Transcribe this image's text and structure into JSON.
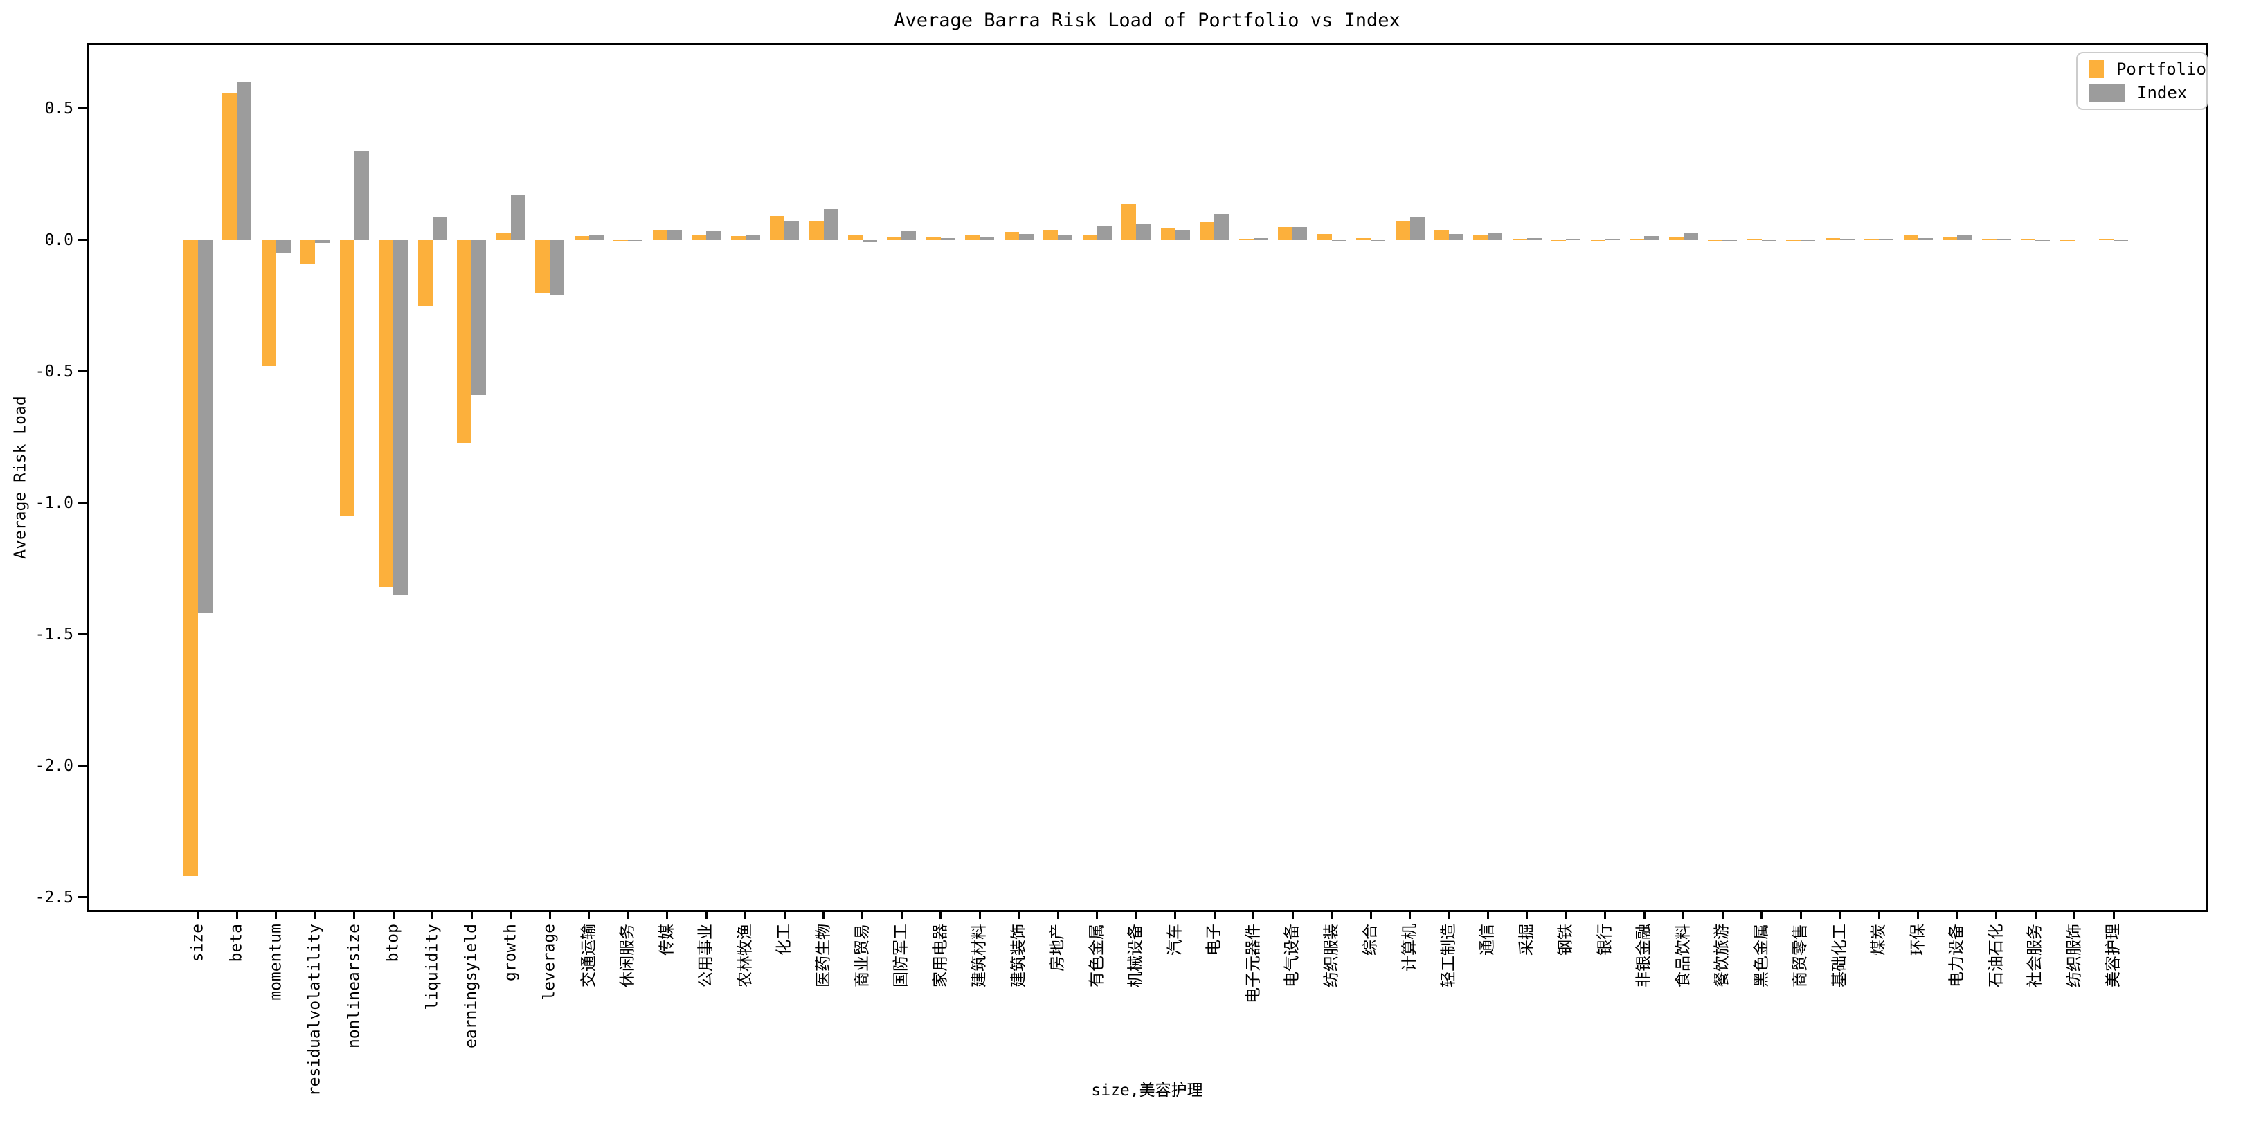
{
  "title": "Average Barra Risk Load of Portfolio vs Index",
  "xlabel": "size,美容护理",
  "ylabel": "Average Risk Load",
  "legend": {
    "portfolio_label": "Portfolio",
    "index_label": "Index"
  },
  "colors": {
    "portfolio": "#fcb03c",
    "index": "#9c9c9c",
    "spine": "#000000",
    "legend_border": "#cccccc"
  },
  "chart_data": {
    "type": "bar",
    "title": "Average Barra Risk Load of Portfolio vs Index",
    "xlabel": "size,美容护理",
    "ylabel": "Average Risk Load",
    "grid": false,
    "legend_position": "upper right",
    "ylim": [
      -2.54,
      0.75
    ],
    "yticks": [
      0.5,
      0.0,
      -0.5,
      -1.0,
      -1.5,
      -2.0,
      -2.5
    ],
    "categories": [
      "size",
      "beta",
      "momentum",
      "residualvolatility",
      "nonlinearsize",
      "btop",
      "liquidity",
      "earningsyield",
      "growth",
      "leverage",
      "交通运输",
      "休闲服务",
      "传媒",
      "公用事业",
      "农林牧渔",
      "化工",
      "医药生物",
      "商业贸易",
      "国防军工",
      "家用电器",
      "建筑材料",
      "建筑装饰",
      "房地产",
      "有色金属",
      "机械设备",
      "汽车",
      "电子",
      "电子元器件",
      "电气设备",
      "纺织服装",
      "综合",
      "计算机",
      "轻工制造",
      "通信",
      "采掘",
      "钢铁",
      "银行",
      "非银金融",
      "食品饮料",
      "餐饮旅游",
      "黑色金属",
      "商贸零售",
      "基础化工",
      "煤炭",
      "环保",
      "电力设备",
      "石油石化",
      "社会服务",
      "纺织服饰",
      "美容护理"
    ],
    "series": [
      {
        "name": "Portfolio",
        "color": "#fcb03c",
        "values": [
          -2.42,
          0.56,
          -0.48,
          -0.09,
          -1.05,
          -1.32,
          -0.25,
          -0.77,
          0.03,
          -0.2,
          0.016,
          -0.004,
          0.039,
          0.022,
          0.015,
          0.092,
          0.073,
          0.019,
          0.014,
          0.01,
          0.017,
          0.031,
          0.038,
          0.022,
          0.138,
          0.044,
          0.069,
          0.005,
          0.051,
          0.024,
          0.007,
          0.071,
          0.04,
          0.021,
          0.006,
          0.001,
          0.001,
          0.006,
          0.011,
          0.001,
          0.006,
          0.001,
          0.008,
          0.002,
          0.02,
          0.01,
          0.005,
          0.003,
          0.001,
          0.003
        ]
      },
      {
        "name": "Index",
        "color": "#9c9c9c",
        "values": [
          -1.42,
          0.6,
          -0.05,
          -0.01,
          0.34,
          -1.35,
          0.09,
          -0.59,
          0.17,
          -0.21,
          0.021,
          0.001,
          0.036,
          0.034,
          0.019,
          0.071,
          0.119,
          -0.007,
          0.035,
          0.009,
          0.011,
          0.024,
          0.021,
          0.052,
          0.061,
          0.037,
          0.099,
          0.007,
          0.05,
          -0.005,
          -0.001,
          0.089,
          0.023,
          0.03,
          0.008,
          0.002,
          0.005,
          0.016,
          0.03,
          0.001,
          0.001,
          0.001,
          0.004,
          0.006,
          0.009,
          0.018,
          0.002,
          0.001,
          0.0,
          0.001
        ]
      }
    ]
  }
}
